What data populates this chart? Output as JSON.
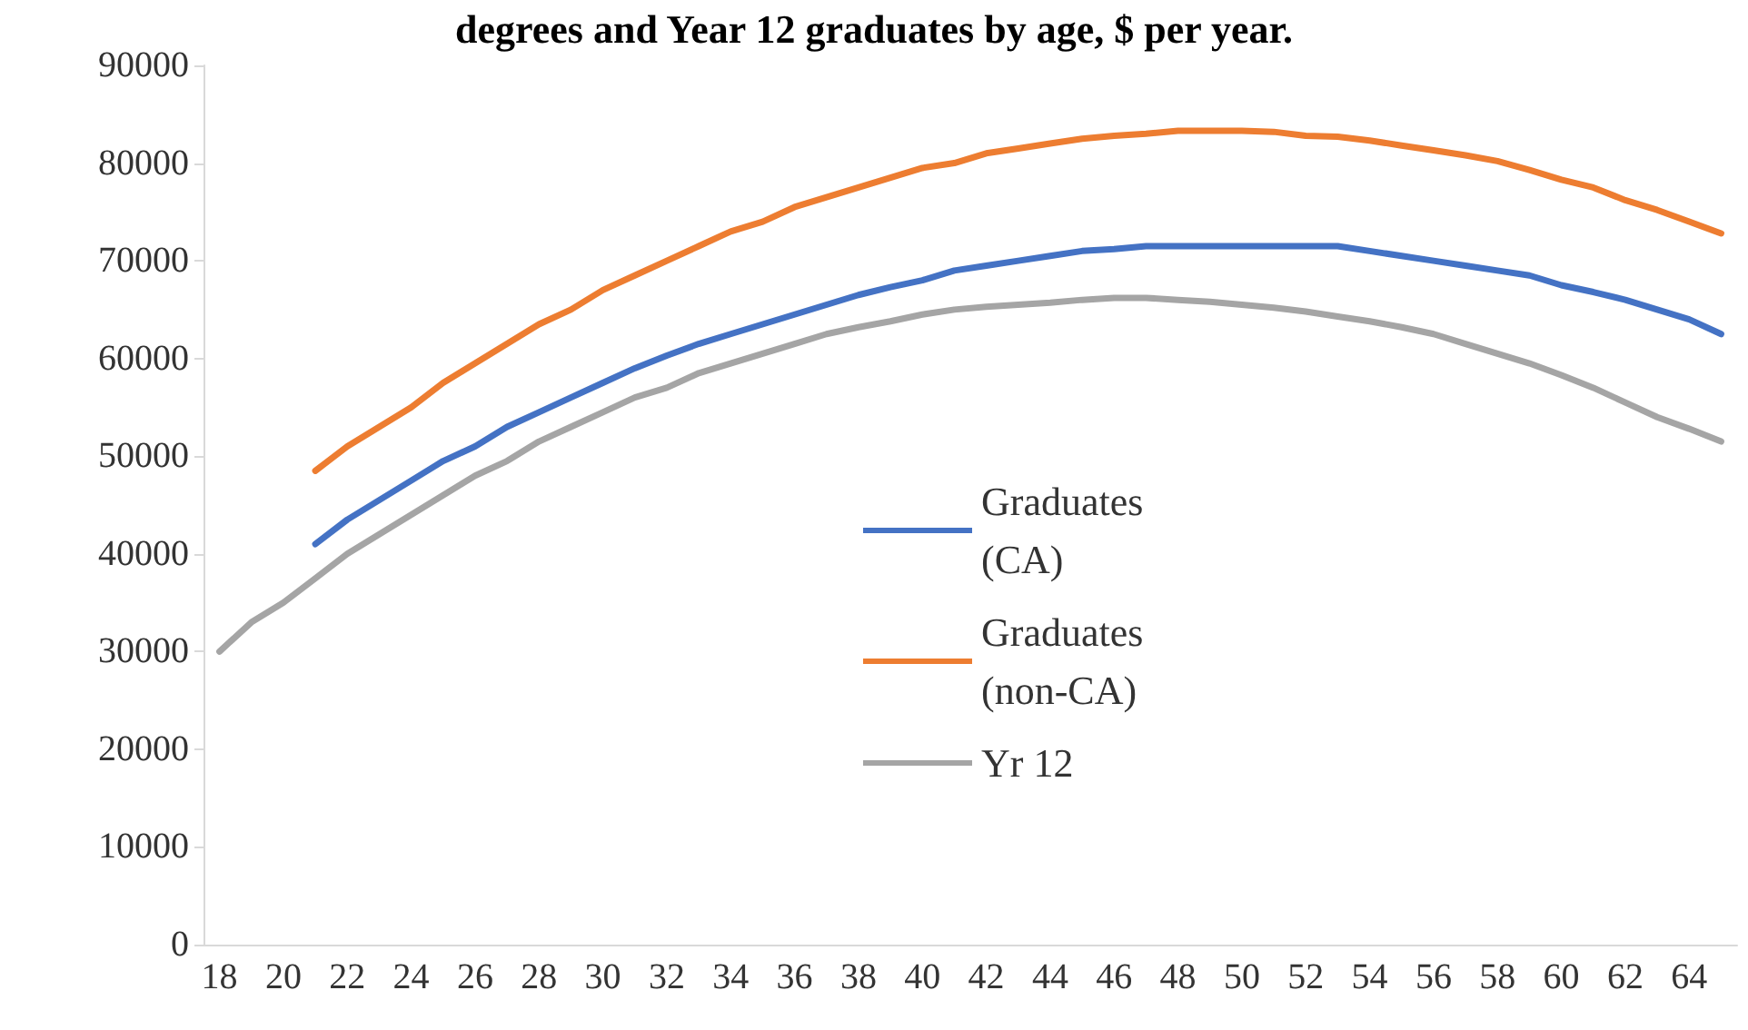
{
  "chart_data": {
    "type": "line",
    "title": "degrees and Year 12 graduates by age, $ per year.",
    "categories": [
      "18",
      null,
      "20",
      null,
      "22",
      null,
      "24",
      null,
      "26",
      null,
      "28",
      null,
      "30",
      null,
      "32",
      null,
      "34",
      null,
      "36",
      null,
      "38",
      null,
      "40",
      null,
      "42",
      null,
      "44",
      null,
      "46",
      null,
      "48",
      null,
      "50",
      null,
      "52",
      null,
      "54",
      null,
      "56",
      null,
      "58",
      null,
      "60",
      null,
      "62",
      null,
      "64",
      null
    ],
    "series": [
      {
        "name": "Graduates (CA)",
        "color": "#4472c4",
        "values": [
          null,
          null,
          null,
          41000,
          43500,
          45500,
          47500,
          49500,
          51000,
          53000,
          54500,
          56000,
          57500,
          59000,
          60300,
          61500,
          62500,
          63500,
          64500,
          65500,
          66500,
          67300,
          68000,
          69000,
          69500,
          70000,
          70500,
          71000,
          71200,
          71500,
          71500,
          71500,
          71500,
          71500,
          71500,
          71500,
          71000,
          70500,
          70000,
          69500,
          69000,
          68500,
          67500,
          66800,
          66000,
          65000,
          64000,
          62500
        ]
      },
      {
        "name": "Graduates (non-CA)",
        "color": "#ed7d31",
        "values": [
          null,
          null,
          null,
          48500,
          51000,
          53000,
          55000,
          57500,
          59500,
          61500,
          63500,
          65000,
          67000,
          68500,
          70000,
          71500,
          73000,
          74000,
          75500,
          76500,
          77500,
          78500,
          79500,
          80000,
          81000,
          81500,
          82000,
          82500,
          82800,
          83000,
          83300,
          83300,
          83300,
          83200,
          82800,
          82700,
          82300,
          81800,
          81300,
          80800,
          80200,
          79300,
          78300,
          77500,
          76200,
          75200,
          74000,
          72800
        ]
      },
      {
        "name": "Yr 12",
        "color": "#a5a5a5",
        "values": [
          30000,
          33000,
          35000,
          37500,
          40000,
          42000,
          44000,
          46000,
          48000,
          49500,
          51500,
          53000,
          54500,
          56000,
          57000,
          58500,
          59500,
          60500,
          61500,
          62500,
          63200,
          63800,
          64500,
          65000,
          65300,
          65500,
          65700,
          66000,
          66200,
          66200,
          66000,
          65800,
          65500,
          65200,
          64800,
          64300,
          63800,
          63200,
          62500,
          61500,
          60500,
          59500,
          58300,
          57000,
          55500,
          54000,
          52800,
          51500
        ]
      }
    ],
    "ylim": [
      0,
      90000
    ],
    "yticks": [
      0,
      10000,
      20000,
      30000,
      40000,
      50000,
      60000,
      70000,
      80000,
      90000
    ],
    "legend": "center",
    "marker": "none",
    "line_style": "solid"
  }
}
